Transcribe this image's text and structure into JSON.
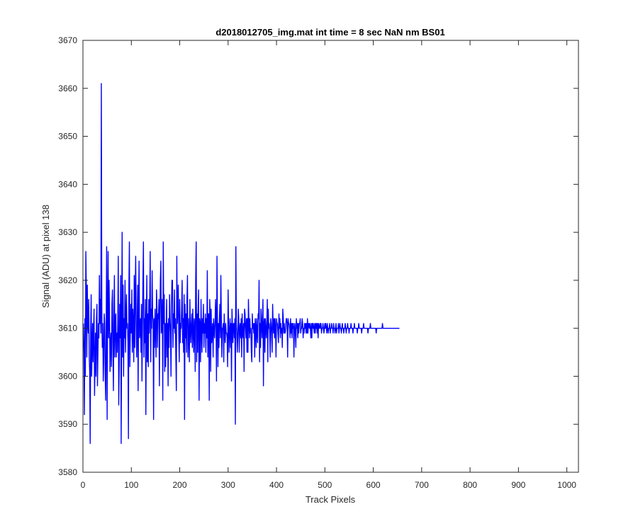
{
  "chart_data": {
    "type": "line",
    "title": "d2018012705_img.mat int time = 8 sec  NaN nm BS01",
    "xlabel": "Track Pixels",
    "ylabel": "Signal (ADU) at pixel 138",
    "xlim": [
      0,
      1024
    ],
    "ylim": [
      3580,
      3670
    ],
    "xticks": [
      0,
      100,
      200,
      300,
      400,
      500,
      600,
      700,
      800,
      900,
      1000
    ],
    "yticks": [
      3580,
      3590,
      3600,
      3610,
      3620,
      3630,
      3640,
      3650,
      3660,
      3670
    ],
    "grid": false,
    "legend": "none",
    "series": [
      {
        "color": "#0000ff",
        "x_start": 1,
        "x_step": 1,
        "values": [
          3611,
          3605,
          3592,
          3612,
          3600,
          3626,
          3618,
          3604,
          3619,
          3611,
          3609,
          3616,
          3604,
          3601,
          3586,
          3610,
          3617,
          3600,
          3606,
          3611,
          3603,
          3610,
          3614,
          3596,
          3603,
          3609,
          3600,
          3612,
          3615,
          3598,
          3605,
          3611,
          3608,
          3621,
          3611,
          3616,
          3609,
          3661,
          3614,
          3606,
          3611,
          3599,
          3604,
          3613,
          3611,
          3600,
          3595,
          3609,
          3627,
          3591,
          3614,
          3626,
          3608,
          3620,
          3612,
          3601,
          3607,
          3609,
          3602,
          3615,
          3618,
          3606,
          3597,
          3612,
          3621,
          3604,
          3611,
          3613,
          3604,
          3609,
          3605,
          3611,
          3625,
          3594,
          3602,
          3615,
          3608,
          3621,
          3586,
          3610,
          3630,
          3604,
          3619,
          3600,
          3612,
          3608,
          3620,
          3605,
          3612,
          3617,
          3610,
          3611,
          3607,
          3587,
          3619,
          3628,
          3602,
          3610,
          3615,
          3609,
          3618,
          3605,
          3614,
          3611,
          3603,
          3621,
          3606,
          3617,
          3625,
          3611,
          3604,
          3610,
          3619,
          3597,
          3614,
          3624,
          3608,
          3609,
          3612,
          3605,
          3615,
          3599,
          3610,
          3620,
          3628,
          3604,
          3612,
          3607,
          3616,
          3592,
          3610,
          3621,
          3603,
          3613,
          3602,
          3616,
          3609,
          3615,
          3626,
          3603,
          3614,
          3610,
          3622,
          3613,
          3611,
          3591,
          3612,
          3606,
          3614,
          3610,
          3604,
          3618,
          3614,
          3606,
          3613,
          3612,
          3616,
          3598,
          3612,
          3620,
          3624,
          3609,
          3611,
          3616,
          3595,
          3628,
          3611,
          3617,
          3601,
          3611,
          3602,
          3610,
          3616,
          3604,
          3611,
          3598,
          3612,
          3606,
          3617,
          3612,
          3609,
          3600,
          3615,
          3620,
          3620,
          3606,
          3613,
          3610,
          3618,
          3609,
          3612,
          3604,
          3597,
          3625,
          3611,
          3614,
          3619,
          3609,
          3603,
          3616,
          3607,
          3611,
          3610,
          3614,
          3620,
          3607,
          3612,
          3605,
          3617,
          3591,
          3615,
          3608,
          3613,
          3605,
          3616,
          3621,
          3604,
          3612,
          3609,
          3603,
          3616,
          3610,
          3607,
          3611,
          3613,
          3606,
          3614,
          3609,
          3605,
          3612,
          3611,
          3601,
          3620,
          3628,
          3603,
          3613,
          3605,
          3614,
          3618,
          3595,
          3612,
          3611,
          3603,
          3616,
          3610,
          3605,
          3612,
          3609,
          3615,
          3606,
          3611,
          3609,
          3613,
          3605,
          3612,
          3608,
          3622,
          3604,
          3613,
          3613,
          3595,
          3616,
          3613,
          3601,
          3614,
          3607,
          3609,
          3611,
          3604,
          3612,
          3610,
          3608,
          3611,
          3616,
          3612,
          3599,
          3625,
          3611,
          3602,
          3611,
          3606,
          3612,
          3615,
          3608,
          3621,
          3612,
          3604,
          3610,
          3610,
          3611,
          3603,
          3613,
          3609,
          3607,
          3611,
          3609,
          3609,
          3608,
          3602,
          3618,
          3610,
          3605,
          3610,
          3612,
          3606,
          3611,
          3599,
          3614,
          3610,
          3607,
          3611,
          3611,
          3608,
          3612,
          3590,
          3627,
          3611,
          3609,
          3605,
          3608,
          3614,
          3612,
          3605,
          3610,
          3611,
          3608,
          3612,
          3604,
          3613,
          3609,
          3608,
          3611,
          3601,
          3614,
          3613,
          3610,
          3608,
          3612,
          3605,
          3612,
          3605,
          3616,
          3611,
          3608,
          3612,
          3609,
          3610,
          3605,
          3603,
          3613,
          3610,
          3611,
          3609,
          3611,
          3604,
          3612,
          3610,
          3606,
          3612,
          3609,
          3607,
          3613,
          3612,
          3620,
          3603,
          3611,
          3606,
          3614,
          3611,
          3608,
          3612,
          3616,
          3598,
          3611,
          3612,
          3605,
          3612,
          3610,
          3608,
          3611,
          3616,
          3603,
          3614,
          3610,
          3611,
          3609,
          3604,
          3612,
          3611,
          3609,
          3605,
          3615,
          3611,
          3609,
          3612,
          3608,
          3612,
          3610,
          3604,
          3612,
          3611,
          3611,
          3609,
          3607,
          3613,
          3610,
          3612,
          3608,
          3611,
          3609,
          3610,
          3606,
          3614,
          3612,
          3609,
          3611,
          3609,
          3609,
          3610,
          3612,
          3612,
          3611,
          3604,
          3612,
          3611,
          3611,
          3610,
          3608,
          3612,
          3609,
          3611,
          3608,
          3611,
          3610,
          3611,
          3604,
          3610,
          3611,
          3609,
          3606,
          3612,
          3610,
          3611,
          3608,
          3611,
          3609,
          3611,
          3611,
          3612,
          3609,
          3610,
          3610,
          3612,
          3611,
          3608,
          3610,
          3609,
          3611,
          3610,
          3611,
          3609,
          3611,
          3609,
          3612,
          3609,
          3611,
          3611,
          3610,
          3611,
          3610,
          3608,
          3611,
          3608,
          3611,
          3610,
          3611,
          3610,
          3609,
          3611,
          3609,
          3611,
          3610,
          3611,
          3609,
          3611,
          3608,
          3611,
          3610,
          3610,
          3611,
          3610,
          3611,
          3609,
          3610,
          3610,
          3611,
          3610,
          3609,
          3610,
          3611,
          3610,
          3611,
          3610,
          3609,
          3611,
          3610,
          3609,
          3610,
          3610,
          3611,
          3609,
          3610,
          3610,
          3611,
          3610,
          3610,
          3609,
          3611,
          3610,
          3610,
          3609,
          3610,
          3611,
          3609,
          3610,
          3610,
          3610,
          3611,
          3609,
          3610,
          3611,
          3610,
          3610,
          3609,
          3610,
          3611,
          3610,
          3610,
          3609,
          3610,
          3610,
          3611,
          3610,
          3609,
          3610,
          3610,
          3611,
          3610,
          3610,
          3609,
          3610,
          3610,
          3610,
          3611,
          3610,
          3610,
          3610,
          3609,
          3610,
          3610,
          3611,
          3610,
          3610,
          3610,
          3610,
          3610,
          3609,
          3610,
          3610,
          3611,
          3610,
          3610,
          3610,
          3610,
          3610,
          3609,
          3610,
          3610,
          3610,
          3611,
          3610,
          3610,
          3610,
          3610,
          3610,
          3610,
          3610,
          3610,
          3609,
          3610,
          3610,
          3610,
          3610,
          3611,
          3610,
          3610,
          3610,
          3610,
          3610,
          3610,
          3610,
          3610,
          3610,
          3610,
          3610,
          3609,
          3610,
          3610,
          3610,
          3610,
          3610,
          3610,
          3610,
          3610,
          3610,
          3610,
          3610,
          3610,
          3611,
          3610,
          3610,
          3610,
          3610,
          3610,
          3610,
          3610,
          3610,
          3610,
          3610,
          3610,
          3610,
          3610,
          3610,
          3610,
          3610,
          3610,
          3610,
          3610,
          3610,
          3610,
          3610,
          3610,
          3610,
          3610,
          3610,
          3610,
          3610,
          3610,
          3610,
          3610,
          3610,
          3610,
          3610,
          3610
        ]
      }
    ]
  }
}
